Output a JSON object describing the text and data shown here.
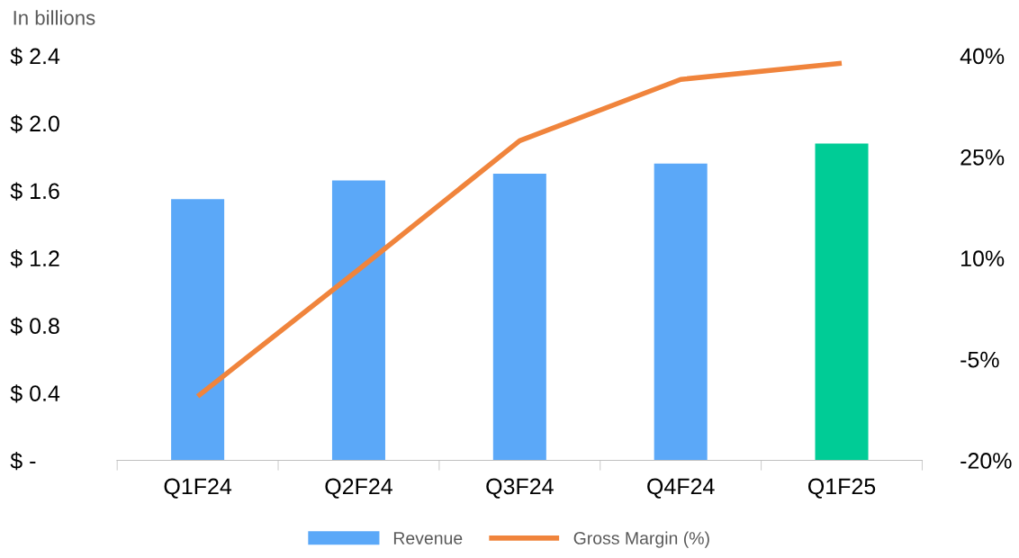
{
  "chart_data": {
    "type": "bar",
    "ylabel": "In billions",
    "categories": [
      "Q1F24",
      "Q2F24",
      "Q3F24",
      "Q4F24",
      "Q1F25"
    ],
    "series": [
      {
        "name": "Revenue",
        "color": "#5ba8f8",
        "colors": [
          "#5ba8f8",
          "#5ba8f8",
          "#5ba8f8",
          "#5ba8f8",
          "#00cc96"
        ],
        "values": [
          1.55,
          1.66,
          1.7,
          1.76,
          1.88
        ]
      },
      {
        "name": "Gross Margin (%)",
        "type": "line",
        "axis": "y2",
        "color": "#f0843c",
        "values": [
          -10.5,
          8.3,
          27.4,
          36.5,
          38.9
        ]
      }
    ],
    "ylim": [
      0,
      2.4
    ],
    "yticks": [
      {
        "value": 0,
        "label": "$ -"
      },
      {
        "value": 0.4,
        "label": "$ 0.4"
      },
      {
        "value": 0.8,
        "label": "$ 0.8"
      },
      {
        "value": 1.2,
        "label": "$ 1.2"
      },
      {
        "value": 1.6,
        "label": "$ 1.6"
      },
      {
        "value": 2.0,
        "label": "$ 2.0"
      },
      {
        "value": 2.4,
        "label": "$ 2.4"
      }
    ],
    "y2lim": [
      -20,
      40
    ],
    "y2ticks": [
      {
        "value": -20,
        "label": "-20%"
      },
      {
        "value": -5,
        "label": "-5%"
      },
      {
        "value": 10,
        "label": "10%"
      },
      {
        "value": 25,
        "label": "25%"
      },
      {
        "value": 40,
        "label": "40%"
      }
    ],
    "grid": false,
    "legend": "bottom",
    "line_style": "solid",
    "marker": "none"
  }
}
